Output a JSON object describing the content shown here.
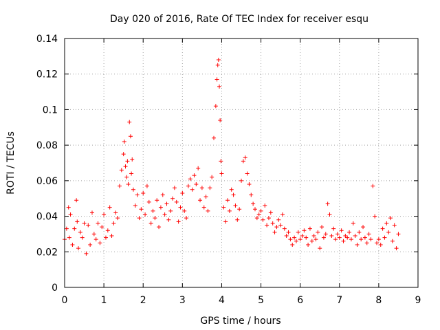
{
  "chart_data": {
    "type": "scatter",
    "title": "Day 020 of 2016, Rate Of TEC Index for receiver esqu",
    "xlabel": "GPS time / hours",
    "ylabel": "ROTI / TECUs",
    "xlim": [
      0,
      9
    ],
    "ylim": [
      0,
      0.14
    ],
    "xticks": [
      0,
      1,
      2,
      3,
      4,
      5,
      6,
      7,
      8,
      9
    ],
    "yticks": [
      0,
      0.02,
      0.04,
      0.06,
      0.08,
      0.1,
      0.12,
      0.14
    ],
    "xtick_labels": [
      "0",
      "1",
      "2",
      "3",
      "4",
      "5",
      "6",
      "7",
      "8",
      "9"
    ],
    "ytick_labels": [
      "0",
      "0.02",
      "0.04",
      "0.06",
      "0.08",
      "0.1",
      "0.12",
      "0.14"
    ],
    "grid": true,
    "marker": "+",
    "color": "#ff0000",
    "series": [
      {
        "name": "ROTI",
        "x": [
          0.0,
          0.05,
          0.1,
          0.12,
          0.15,
          0.2,
          0.25,
          0.3,
          0.32,
          0.35,
          0.4,
          0.45,
          0.5,
          0.55,
          0.6,
          0.65,
          0.7,
          0.75,
          0.8,
          0.85,
          0.9,
          0.95,
          1.0,
          1.05,
          1.1,
          1.15,
          1.2,
          1.25,
          1.3,
          1.35,
          1.4,
          1.45,
          1.5,
          1.52,
          1.55,
          1.58,
          1.6,
          1.62,
          1.65,
          1.68,
          1.7,
          1.72,
          1.75,
          1.8,
          1.85,
          1.9,
          1.95,
          2.0,
          2.05,
          2.1,
          2.15,
          2.2,
          2.25,
          2.3,
          2.35,
          2.4,
          2.45,
          2.5,
          2.55,
          2.6,
          2.65,
          2.7,
          2.75,
          2.8,
          2.85,
          2.9,
          2.95,
          3.0,
          3.05,
          3.1,
          3.15,
          3.2,
          3.25,
          3.3,
          3.35,
          3.4,
          3.45,
          3.5,
          3.55,
          3.6,
          3.65,
          3.7,
          3.75,
          3.8,
          3.85,
          3.88,
          3.9,
          3.92,
          3.94,
          3.96,
          3.98,
          4.0,
          4.05,
          4.1,
          4.15,
          4.2,
          4.25,
          4.3,
          4.35,
          4.4,
          4.45,
          4.5,
          4.55,
          4.6,
          4.65,
          4.7,
          4.75,
          4.8,
          4.85,
          4.9,
          4.95,
          5.0,
          5.05,
          5.1,
          5.15,
          5.2,
          5.25,
          5.3,
          5.35,
          5.4,
          5.45,
          5.5,
          5.55,
          5.6,
          5.65,
          5.7,
          5.75,
          5.8,
          5.85,
          5.9,
          5.95,
          6.0,
          6.05,
          6.1,
          6.15,
          6.2,
          6.25,
          6.3,
          6.35,
          6.4,
          6.45,
          6.5,
          6.55,
          6.6,
          6.65,
          6.7,
          6.75,
          6.8,
          6.85,
          6.9,
          6.95,
          7.0,
          7.05,
          7.1,
          7.15,
          7.2,
          7.25,
          7.3,
          7.35,
          7.4,
          7.45,
          7.5,
          7.55,
          7.6,
          7.65,
          7.7,
          7.75,
          7.8,
          7.85,
          7.9,
          7.95,
          8.0,
          8.05,
          8.1,
          8.15,
          8.2,
          8.25,
          8.3,
          8.35,
          8.4,
          8.45,
          8.5
        ],
        "y": [
          0.027,
          0.033,
          0.045,
          0.028,
          0.041,
          0.024,
          0.033,
          0.049,
          0.037,
          0.022,
          0.031,
          0.028,
          0.036,
          0.019,
          0.035,
          0.024,
          0.042,
          0.03,
          0.027,
          0.036,
          0.025,
          0.034,
          0.041,
          0.028,
          0.032,
          0.045,
          0.029,
          0.036,
          0.042,
          0.039,
          0.057,
          0.066,
          0.075,
          0.082,
          0.068,
          0.062,
          0.071,
          0.058,
          0.093,
          0.085,
          0.064,
          0.072,
          0.055,
          0.046,
          0.052,
          0.039,
          0.044,
          0.053,
          0.041,
          0.057,
          0.048,
          0.036,
          0.043,
          0.039,
          0.049,
          0.034,
          0.045,
          0.052,
          0.041,
          0.047,
          0.038,
          0.043,
          0.05,
          0.056,
          0.048,
          0.037,
          0.045,
          0.053,
          0.043,
          0.039,
          0.057,
          0.061,
          0.055,
          0.063,
          0.058,
          0.067,
          0.049,
          0.056,
          0.045,
          0.051,
          0.043,
          0.056,
          0.062,
          0.084,
          0.102,
          0.117,
          0.125,
          0.128,
          0.113,
          0.094,
          0.071,
          0.064,
          0.045,
          0.037,
          0.049,
          0.043,
          0.055,
          0.052,
          0.046,
          0.038,
          0.044,
          0.06,
          0.071,
          0.073,
          0.064,
          0.058,
          0.052,
          0.047,
          0.044,
          0.039,
          0.041,
          0.043,
          0.038,
          0.046,
          0.035,
          0.039,
          0.042,
          0.036,
          0.031,
          0.034,
          0.038,
          0.035,
          0.041,
          0.033,
          0.029,
          0.031,
          0.027,
          0.024,
          0.028,
          0.026,
          0.031,
          0.027,
          0.029,
          0.032,
          0.028,
          0.024,
          0.033,
          0.026,
          0.029,
          0.027,
          0.031,
          0.022,
          0.034,
          0.028,
          0.03,
          0.047,
          0.041,
          0.029,
          0.033,
          0.027,
          0.03,
          0.028,
          0.032,
          0.026,
          0.029,
          0.028,
          0.031,
          0.027,
          0.036,
          0.029,
          0.024,
          0.031,
          0.027,
          0.034,
          0.028,
          0.025,
          0.03,
          0.027,
          0.057,
          0.04,
          0.025,
          0.027,
          0.024,
          0.033,
          0.028,
          0.036,
          0.031,
          0.039,
          0.026,
          0.035,
          0.022,
          0.03
        ]
      }
    ]
  }
}
